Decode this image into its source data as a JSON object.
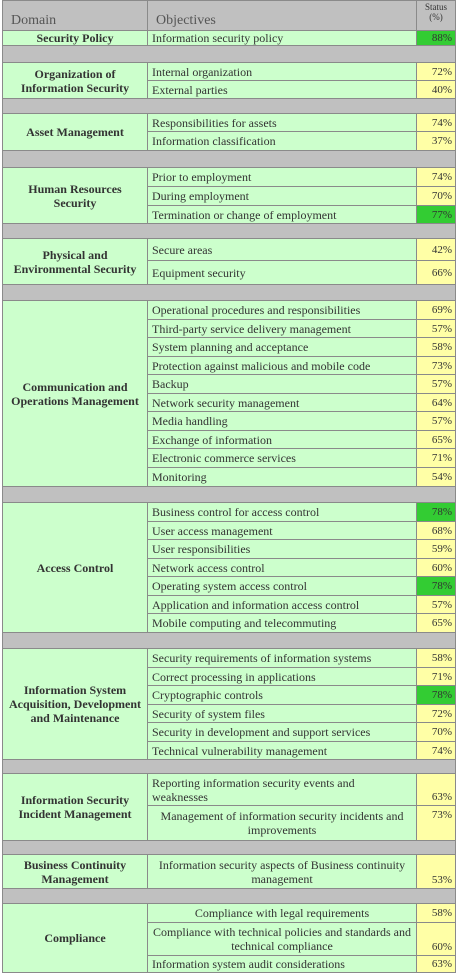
{
  "header": {
    "domain": "Domain",
    "objectives": "Objectives",
    "status": "Status",
    "status_unit": "(%)"
  },
  "groups": [
    {
      "domain": "Security Policy",
      "items": [
        {
          "objective": "Information security policy",
          "status": "88%",
          "color": "#33cc33"
        }
      ]
    },
    {
      "domain": "Organization of Information Security",
      "items": [
        {
          "objective": "Internal organization",
          "status": "72%",
          "color": "#ffffa6"
        },
        {
          "objective": "External parties",
          "status": "40%",
          "color": "#ffffa6"
        }
      ]
    },
    {
      "domain": "Asset Management",
      "items": [
        {
          "objective": "Responsibilities for assets",
          "status": "74%",
          "color": "#ffffa6"
        },
        {
          "objective": "Information classification",
          "status": "37%",
          "color": "#ffffa6"
        }
      ]
    },
    {
      "domain": "Human Resources Security",
      "items": [
        {
          "objective": "Prior to employment",
          "status": "74%",
          "color": "#ffffa6"
        },
        {
          "objective": "During employment",
          "status": "70%",
          "color": "#ffffa6"
        },
        {
          "objective": "Termination or change of employment",
          "status": "77%",
          "color": "#33cc33"
        }
      ]
    },
    {
      "domain": "Physical and Environmental Security",
      "items": [
        {
          "objective": "Secure areas",
          "status": "42%",
          "color": "#ffffa6"
        },
        {
          "objective": "Equipment security",
          "status": "66%",
          "color": "#ffffa6"
        }
      ]
    },
    {
      "domain": "Communication and Operations Management",
      "items": [
        {
          "objective": "Operational procedures and responsibilities",
          "status": "69%",
          "color": "#ffffa6"
        },
        {
          "objective": "Third-party service delivery management",
          "status": "57%",
          "color": "#ffffa6"
        },
        {
          "objective": "System planning and acceptance",
          "status": "58%",
          "color": "#ffffa6"
        },
        {
          "objective": "Protection against malicious and mobile code",
          "status": "73%",
          "color": "#ffffa6"
        },
        {
          "objective": "Backup",
          "status": "57%",
          "color": "#ffffa6"
        },
        {
          "objective": "Network security management",
          "status": "64%",
          "color": "#ffffa6"
        },
        {
          "objective": "Media handling",
          "status": "57%",
          "color": "#ffffa6"
        },
        {
          "objective": "Exchange of information",
          "status": "65%",
          "color": "#ffffa6"
        },
        {
          "objective": "Electronic commerce services",
          "status": "71%",
          "color": "#ffffa6"
        },
        {
          "objective": "Monitoring",
          "status": "54%",
          "color": "#ffffa6"
        }
      ]
    },
    {
      "domain": "Access Control",
      "items": [
        {
          "objective": "Business control for access control",
          "status": "78%",
          "color": "#33cc33"
        },
        {
          "objective": "User access management",
          "status": "68%",
          "color": "#ffffa6"
        },
        {
          "objective": "User responsibilities",
          "status": "59%",
          "color": "#ffffa6"
        },
        {
          "objective": "Network access control",
          "status": "60%",
          "color": "#ffffa6"
        },
        {
          "objective": "Operating system access control",
          "status": "78%",
          "color": "#33cc33"
        },
        {
          "objective": "Application and information access control",
          "status": "57%",
          "color": "#ffffa6"
        },
        {
          "objective": "Mobile computing and telecommuting",
          "status": "65%",
          "color": "#ffffa6"
        }
      ]
    },
    {
      "domain": "Information System Acquisition, Development and Maintenance",
      "items": [
        {
          "objective": "Security requirements of information systems",
          "status": "58%",
          "color": "#ffffa6"
        },
        {
          "objective": "Correct processing in applications",
          "status": "71%",
          "color": "#ffffa6"
        },
        {
          "objective": "Cryptographic controls",
          "status": "78%",
          "color": "#33cc33"
        },
        {
          "objective": "Security of system files",
          "status": "72%",
          "color": "#ffffa6"
        },
        {
          "objective": "Security in development and support services",
          "status": "70%",
          "color": "#ffffa6"
        },
        {
          "objective": "Technical vulnerability management",
          "status": "74%",
          "color": "#ffffa6"
        }
      ]
    },
    {
      "domain": "Information Security Incident Management",
      "items": [
        {
          "objective": "Reporting information security events and weaknesses",
          "status": "63%",
          "color": "#ffffa6"
        },
        {
          "objective": "Management of information security incidents and improvements",
          "status": "73%",
          "color": "#ffffa6"
        }
      ]
    },
    {
      "domain": "Business Continuity Management",
      "items": [
        {
          "objective": "Information security aspects of Business continuity management",
          "status": "53%",
          "color": "#ffffa6"
        }
      ]
    },
    {
      "domain": "Compliance",
      "items": [
        {
          "objective": "Compliance with legal requirements",
          "status": "58%",
          "color": "#ffffa6"
        },
        {
          "objective": "Compliance with technical policies and standards and technical compliance",
          "status": "60%",
          "color": "#ffffa6"
        },
        {
          "objective": "Information system audit considerations",
          "status": "63%",
          "color": "#ffffa6"
        }
      ]
    }
  ]
}
